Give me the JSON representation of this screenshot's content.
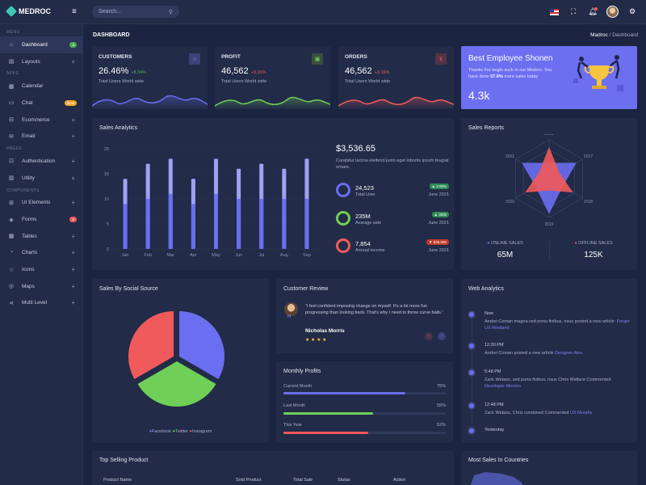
{
  "topbar": {
    "brand": "MEDROC",
    "search_placeholder": "Search..."
  },
  "sidebar": {
    "sections": {
      "menu": "MENU",
      "apps": "APPS",
      "pages": "PAGES",
      "components": "COMPONENTS"
    },
    "items": [
      {
        "label": "Dashboard",
        "icon": "home-icon",
        "badge": "3",
        "badge_color": "#4caf50"
      },
      {
        "label": "Layouts",
        "icon": "layout-icon"
      },
      {
        "label": "Calendar",
        "icon": "calendar-icon"
      },
      {
        "label": "Chat",
        "icon": "chat-icon",
        "badge": "New",
        "badge_color": "#f0a830"
      },
      {
        "label": "Ecommerce",
        "icon": "store-icon"
      },
      {
        "label": "Email",
        "icon": "mail-icon"
      },
      {
        "label": "Authentication",
        "icon": "lock-icon"
      },
      {
        "label": "Utility",
        "icon": "tool-icon"
      },
      {
        "label": "UI Elements",
        "icon": "grid-icon"
      },
      {
        "label": "Forms",
        "icon": "form-icon",
        "badge": "6",
        "badge_color": "#f05a5a"
      },
      {
        "label": "Tables",
        "icon": "table-icon"
      },
      {
        "label": "Charts",
        "icon": "chart-icon"
      },
      {
        "label": "Icons",
        "icon": "star-icon"
      },
      {
        "label": "Maps",
        "icon": "map-pin-icon"
      },
      {
        "label": "Multi Level",
        "icon": "share-icon"
      }
    ]
  },
  "page": {
    "title": "DASHBOARD",
    "breadcrumb_root": "Madroc",
    "breadcrumb_sep": "/",
    "breadcrumb_current": "Dashboard"
  },
  "stats": [
    {
      "title": "CUSTOMERS",
      "value": "26.46%",
      "delta": "+8.34%",
      "delta_color": "#4caf50",
      "sub": "Total Users World wide",
      "icon": "user-icon",
      "color": "#6a6ef0"
    },
    {
      "title": "PROFIT",
      "value": "46,562",
      "delta": "+3.16%",
      "delta_color": "#f05a5a",
      "sub": "Total Users World wide",
      "icon": "wallet-icon",
      "color": "#6fcf57"
    },
    {
      "title": "ORDERS",
      "value": "46,562",
      "delta": "+3.16%",
      "delta_color": "#f05a5a",
      "sub": "Total Users World wide",
      "icon": "cart-icon",
      "color": "#f05a5a"
    }
  ],
  "employee": {
    "title": "Best Employee Shonen",
    "text_a": "Thanks For begin such in our Medroc. You",
    "text_b": "have done",
    "highlight": "57.6%",
    "text_c": "more sales today",
    "value": "4.3k"
  },
  "sales_analytics": {
    "title": "Sales Analytics",
    "amount": "$3,536.65",
    "desc": "Curabitur lacinia eleifend justo eget lobortis ipsum feugiat ornare.",
    "rows": [
      {
        "value": "24,523",
        "label": "Total User",
        "pill": "▲ 2.65%",
        "pill_color": "#2e8b57",
        "date": "June 2021",
        "ring": "#6a6ef0"
      },
      {
        "value": "235M",
        "label": "Avarage sale",
        "pill": "▲ 350k",
        "pill_color": "#2e8b57",
        "date": "June 2021",
        "ring": "#6fcf57"
      },
      {
        "value": "7,854",
        "label": "Annual income",
        "pill": "▼ $38,580",
        "pill_color": "#c0392b",
        "date": "June 2021",
        "ring": "#f05a5a"
      }
    ]
  },
  "chart_data": [
    {
      "type": "bar",
      "title": "Sales Analytics",
      "categories": [
        "Jan",
        "Feb",
        "Mar",
        "Apr",
        "May",
        "Jun",
        "Jul",
        "Aug",
        "Sep"
      ],
      "series": [
        {
          "values": [
            14,
            17,
            18,
            14,
            18,
            16,
            17,
            16,
            18
          ]
        },
        {
          "values": [
            9,
            10,
            11,
            9,
            11,
            10,
            10,
            10,
            10
          ]
        }
      ],
      "ylim": [
        0,
        20
      ],
      "yticks": [
        0,
        5,
        10,
        15,
        20
      ]
    },
    {
      "type": "radar",
      "title": "Sales Reports",
      "categories": [
        "2016",
        "2017",
        "2018",
        "2019",
        "2020",
        "2021"
      ],
      "rlim": [
        0,
        1
      ],
      "series": [
        {
          "name": "ONLINE SALES",
          "values": [
            0.4,
            0.8,
            0.4,
            0.9,
            0.4,
            0.8
          ],
          "color": "#6a6ef0"
        },
        {
          "name": "OFFLINE SALES",
          "values": [
            0.8,
            0.3,
            0.7,
            0.3,
            0.7,
            0.3
          ],
          "color": "#f05a5a"
        }
      ]
    },
    {
      "type": "pie",
      "title": "Sales By Social Source",
      "series": [
        {
          "name": "Facebook",
          "value": 33.3,
          "color": "#6a6ef0"
        },
        {
          "name": "Twitter",
          "value": 33.3,
          "color": "#6fcf57"
        },
        {
          "name": "Instagram",
          "value": 33.3,
          "color": "#f05a5a"
        }
      ]
    }
  ],
  "sales_reports": {
    "title": "Sales Reports",
    "online_label": "ONLINE SALES",
    "online_value": "65M",
    "offline_label": "OFFLINE SALES",
    "offline_value": "125K"
  },
  "social": {
    "title": "Sales By Social Source",
    "legend": [
      "Facebook",
      "Twitter",
      "Instagram"
    ]
  },
  "review": {
    "title": "Customer Review",
    "quote": "“I feel confident imposing change on myself. It's a lot more fun progressing than looking back. That's why I need to throw curve balls.”",
    "name": "Nicholas Morris",
    "stars": "★ ★ ★ ★"
  },
  "monthly": {
    "title": "Monthly Profits",
    "rows": [
      {
        "label": "Current Month",
        "pct": "75%",
        "fill": 0.75,
        "color": "#6a6ef0"
      },
      {
        "label": "Last Month",
        "pct": "55%",
        "fill": 0.55,
        "color": "#6fcf57"
      },
      {
        "label": "This Year",
        "pct": "52%",
        "fill": 0.52,
        "color": "#f05a5a"
      }
    ]
  },
  "web": {
    "title": "Web Analytics",
    "items": [
      {
        "time": "Now",
        "text": "Andrei Coman magna sed porta finibus, risus posted a new article:",
        "link": "Forget UX Rowland"
      },
      {
        "time": "12:30 PM",
        "text": "Andrei Coman posted a new article",
        "link": "Designer Alex"
      },
      {
        "time": "5:48 PM",
        "text": "Zack Wetass, sed porta finibus, risus Chris Wallace Commented",
        "link": "Developer Moreno"
      },
      {
        "time": "12:48 PM",
        "text": "Zack Wetass, Chris combined Commented",
        "link": "UX Murphy"
      },
      {
        "time": "Yesterday",
        "text": "",
        "link": ""
      }
    ]
  },
  "top_selling": {
    "title": "Top Selling Product",
    "headers": [
      "Product Name",
      "Sold Product",
      "Total Sale",
      "Stutas",
      "Action"
    ]
  },
  "countries": {
    "title": "Most Sales In Countries"
  }
}
